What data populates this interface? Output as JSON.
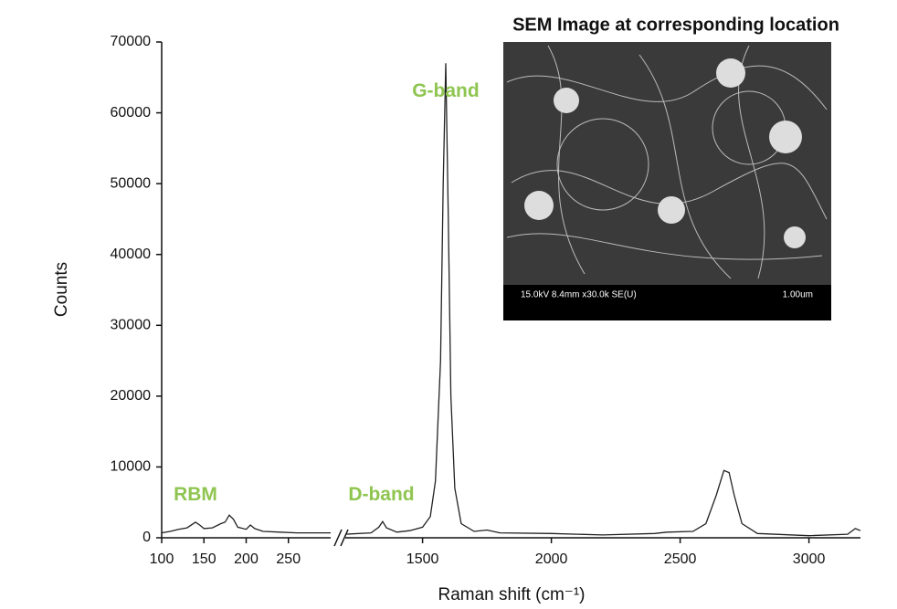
{
  "chart_data": {
    "type": "line",
    "ylabel": "Counts",
    "xlabel": "Raman shift (cm⁻¹)",
    "ylim": [
      0,
      70000
    ],
    "yticks": [
      0,
      10000,
      20000,
      30000,
      40000,
      50000,
      60000,
      70000
    ],
    "color": "#222222",
    "segments": [
      {
        "xlim": [
          100,
          300
        ],
        "xticks": [
          100,
          150,
          200,
          250
        ],
        "x": [
          100,
          110,
          120,
          130,
          140,
          145,
          150,
          160,
          170,
          175,
          180,
          185,
          190,
          200,
          205,
          210,
          220,
          240,
          260,
          280,
          300
        ],
        "values": [
          700,
          900,
          1200,
          1400,
          2200,
          1800,
          1300,
          1400,
          2000,
          2200,
          3200,
          2600,
          1500,
          1200,
          1800,
          1300,
          900,
          800,
          700,
          700,
          700
        ]
      },
      {
        "xlim": [
          1200,
          3200
        ],
        "xticks": [
          1500,
          2000,
          2500,
          3000
        ],
        "x": [
          1200,
          1300,
          1330,
          1345,
          1360,
          1400,
          1450,
          1500,
          1530,
          1550,
          1570,
          1580,
          1590,
          1600,
          1610,
          1625,
          1650,
          1700,
          1750,
          1800,
          2000,
          2200,
          2400,
          2450,
          2550,
          2600,
          2640,
          2670,
          2690,
          2710,
          2740,
          2800,
          3000,
          3150,
          3180,
          3200
        ],
        "values": [
          500,
          700,
          1500,
          2300,
          1400,
          800,
          1000,
          1500,
          3000,
          8000,
          25000,
          50000,
          67000,
          45000,
          20000,
          7000,
          2000,
          900,
          1100,
          700,
          600,
          400,
          600,
          800,
          900,
          2000,
          6000,
          9500,
          9200,
          6000,
          2000,
          600,
          300,
          500,
          1300,
          1000
        ]
      }
    ],
    "annotations": [
      {
        "text": "G-band",
        "x": 1590,
        "y": 63000,
        "segment": 1
      },
      {
        "text": "RBM",
        "x": 140,
        "y": 6000,
        "segment": 0
      },
      {
        "text": "D-band",
        "x": 1340,
        "y": 6000,
        "segment": 1
      }
    ],
    "annotation_color": "#8fc550",
    "inset": {
      "title": "SEM Image at corresponding location",
      "caption": "15.0kV 8.4mm x30.0k SE(U)",
      "scale": "1.00um"
    }
  }
}
